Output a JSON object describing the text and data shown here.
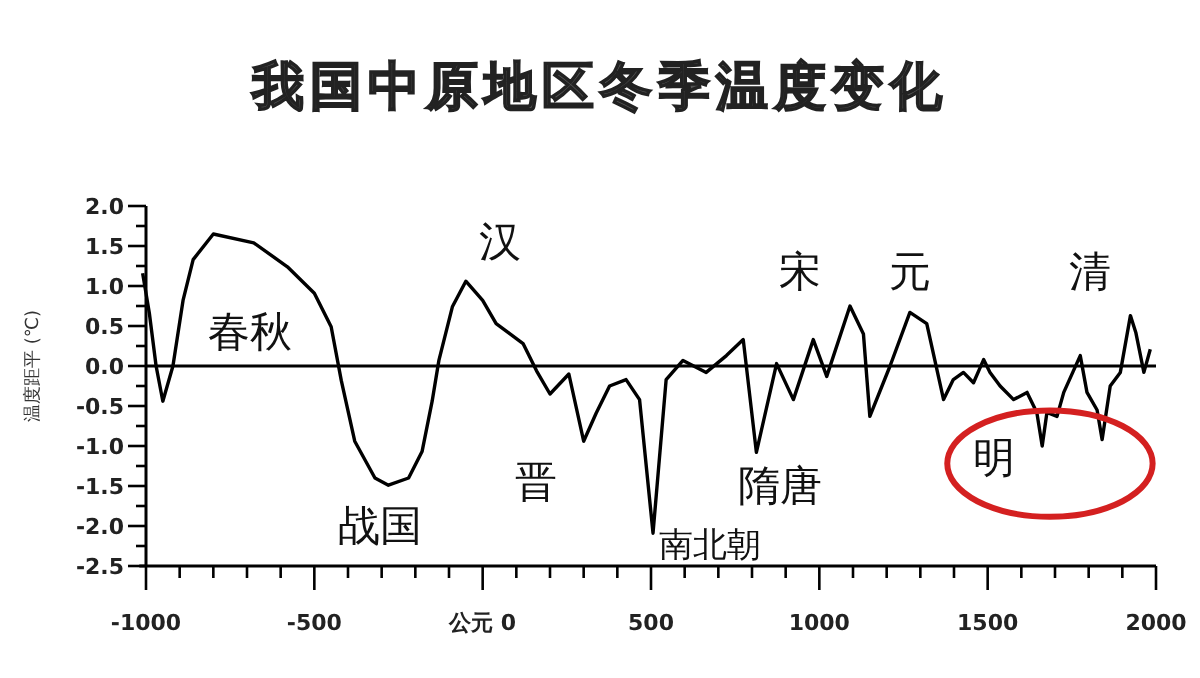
{
  "chart_data": {
    "type": "line",
    "title": "我国中原地区冬季温度变化",
    "ylabel": "温度距平 (℃)",
    "x": [
      -1010,
      -990,
      -970,
      -950,
      -920,
      -890,
      -860,
      -800,
      -680,
      -580,
      -500,
      -450,
      -420,
      -380,
      -320,
      -280,
      -220,
      -180,
      -150,
      -130,
      -90,
      -50,
      0,
      40,
      120,
      160,
      200,
      256,
      300,
      337,
      377,
      426,
      466,
      506,
      545,
      595,
      664,
      724,
      774,
      813,
      873,
      923,
      982,
      1022,
      1091,
      1131,
      1150,
      1210,
      1269,
      1319,
      1369,
      1398,
      1428,
      1458,
      1488,
      1507,
      1537,
      1577,
      1617,
      1646,
      1662,
      1676,
      1706,
      1726,
      1775,
      1795,
      1825,
      1840,
      1864,
      1894,
      1924,
      1940,
      1964,
      1983
    ],
    "series": [
      {
        "color": "#000000",
        "values": [
          1.16,
          0.66,
          0,
          -0.44,
          0,
          0.82,
          1.33,
          1.65,
          1.54,
          1.24,
          0.91,
          0.49,
          -0.18,
          -0.94,
          -1.4,
          -1.49,
          -1.4,
          -1.07,
          -0.44,
          0.07,
          0.74,
          1.06,
          0.82,
          0.53,
          0.28,
          -0.06,
          -0.35,
          -0.1,
          -0.94,
          -0.59,
          -0.25,
          -0.17,
          -0.42,
          -2.09,
          -0.17,
          0.07,
          -0.08,
          0.13,
          0.33,
          -1.08,
          0.03,
          -0.42,
          0.33,
          -0.13,
          0.75,
          0.4,
          -0.63,
          0,
          0.67,
          0.53,
          -0.42,
          -0.17,
          -0.08,
          -0.21,
          0.08,
          -0.08,
          -0.25,
          -0.42,
          -0.33,
          -0.58,
          -1.0,
          -0.58,
          -0.63,
          -0.33,
          0.13,
          -0.33,
          -0.55,
          -0.92,
          -0.25,
          -0.08,
          0.63,
          0.42,
          -0.08,
          0.21
        ]
      }
    ],
    "xlim": [
      -1020,
      2000
    ],
    "ylim": [
      -2.5,
      2.0
    ],
    "xticks": [
      -1000,
      {
        "value": -900,
        "label": null
      },
      {
        "value": -800,
        "label": null
      },
      {
        "value": -700,
        "label": null
      },
      {
        "value": -600,
        "label": null
      },
      -500,
      {
        "value": -400,
        "label": null
      },
      {
        "value": -300,
        "label": null
      },
      {
        "value": -200,
        "label": null
      },
      {
        "value": -100,
        "label": null
      },
      {
        "value": 0,
        "label": "公元 0"
      },
      {
        "value": 100,
        "label": null
      },
      {
        "value": 200,
        "label": null
      },
      {
        "value": 300,
        "label": null
      },
      {
        "value": 400,
        "label": null
      },
      500,
      {
        "value": 600,
        "label": null
      },
      {
        "value": 700,
        "label": null
      },
      {
        "value": 800,
        "label": null
      },
      {
        "value": 900,
        "label": null
      },
      1000,
      {
        "value": 1100,
        "label": null
      },
      {
        "value": 1200,
        "label": null
      },
      {
        "value": 1300,
        "label": null
      },
      {
        "value": 1400,
        "label": null
      },
      1500,
      {
        "value": 1600,
        "label": null
      },
      {
        "value": 1700,
        "label": null
      },
      {
        "value": 1800,
        "label": null
      },
      {
        "value": 1900,
        "label": null
      },
      2000
    ],
    "yticks": [
      {
        "value": 2,
        "label": "2.0"
      },
      {
        "value": 1.75,
        "label": null
      },
      {
        "value": 1.5,
        "label": "1.5"
      },
      {
        "value": 1.25,
        "label": null
      },
      {
        "value": 1,
        "label": "1.0"
      },
      {
        "value": 0.75,
        "label": null
      },
      {
        "value": 0.5,
        "label": "0.5"
      },
      {
        "value": 0.25,
        "label": null
      },
      {
        "value": 0,
        "label": "0.0"
      },
      {
        "value": -0.25,
        "label": null
      },
      {
        "value": -0.5,
        "label": "-0.5"
      },
      {
        "value": -0.75,
        "label": null
      },
      {
        "value": -1,
        "label": "-1.0"
      },
      {
        "value": -1.25,
        "label": null
      },
      {
        "value": -1.5,
        "label": "-1.5"
      },
      {
        "value": -1.75,
        "label": null
      },
      {
        "value": -2,
        "label": "-2.0"
      },
      {
        "value": -2.25,
        "label": null
      },
      {
        "value": -2.5,
        "label": "-2.5"
      }
    ],
    "ref_lines": [
      {
        "axis": "y",
        "value": 0,
        "color": "#000000"
      }
    ],
    "annotations": [
      "春秋",
      "战国",
      "汉",
      "晋",
      "南北朝",
      "隋唐",
      "宋",
      "元",
      "明",
      "清"
    ],
    "grid": false,
    "marker": "none",
    "line_style": "solid"
  }
}
